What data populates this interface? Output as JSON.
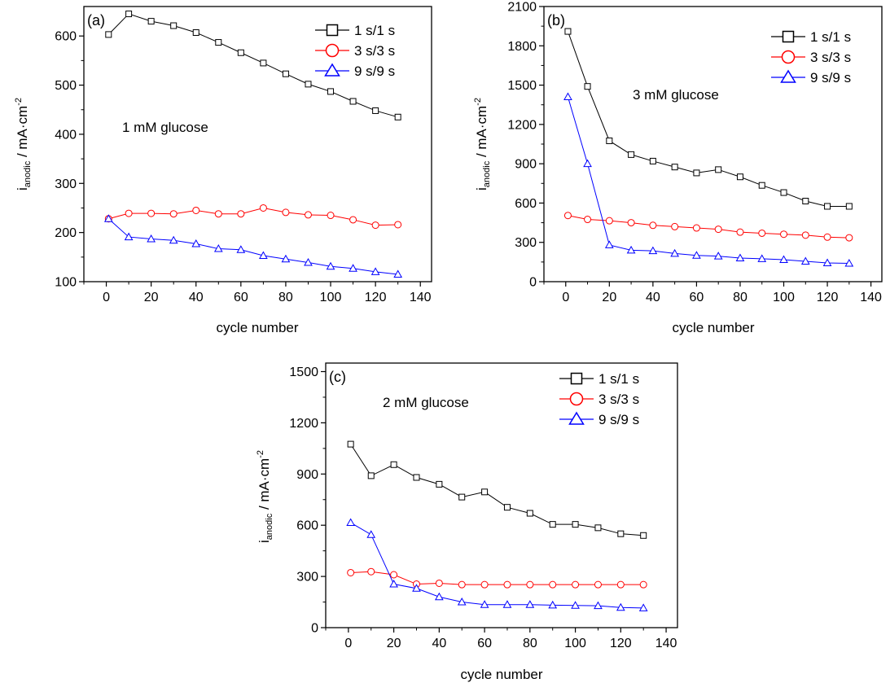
{
  "chart_data": [
    {
      "type": "line",
      "panel_label": "(a)",
      "annotation": "1 mM glucose",
      "xlabel": "cycle number",
      "ylabel_main": "i",
      "ylabel_sub": "anodic",
      "ylabel_rest": " / mA·cm",
      "ylabel_sup": "-2",
      "xlim": [
        -10,
        145
      ],
      "ylim": [
        100,
        660
      ],
      "xticks": [
        0,
        20,
        40,
        60,
        80,
        100,
        120,
        140
      ],
      "yticks": [
        100,
        200,
        300,
        400,
        500,
        600
      ],
      "series": [
        {
          "name": "1 s/1 s",
          "color": "#000000",
          "marker": "square",
          "x": [
            1,
            10,
            20,
            30,
            40,
            50,
            60,
            70,
            80,
            90,
            100,
            110,
            120,
            130
          ],
          "y": [
            603,
            645,
            630,
            621,
            607,
            587,
            566,
            545,
            523,
            502,
            487,
            467,
            448,
            435
          ]
        },
        {
          "name": "3 s/3 s",
          "color": "#ff0000",
          "marker": "circle",
          "x": [
            1,
            10,
            20,
            30,
            40,
            50,
            60,
            70,
            80,
            90,
            100,
            110,
            120,
            130
          ],
          "y": [
            228,
            239,
            239,
            238,
            245,
            238,
            238,
            250,
            241,
            236,
            235,
            226,
            215,
            216
          ]
        },
        {
          "name": "9 s/9 s",
          "color": "#0000ff",
          "marker": "triangle",
          "x": [
            1,
            10,
            20,
            30,
            40,
            50,
            60,
            70,
            80,
            90,
            100,
            110,
            120,
            130
          ],
          "y": [
            228,
            191,
            187,
            184,
            177,
            167,
            165,
            153,
            146,
            139,
            131,
            127,
            120,
            115
          ]
        }
      ]
    },
    {
      "type": "line",
      "panel_label": "(b)",
      "annotation": "3 mM glucose",
      "xlabel": "cycle number",
      "ylabel_main": "i",
      "ylabel_sub": "anodic",
      "ylabel_rest": " / mA·cm",
      "ylabel_sup": "-2",
      "xlim": [
        -10,
        145
      ],
      "ylim": [
        0,
        2100
      ],
      "xticks": [
        0,
        20,
        40,
        60,
        80,
        100,
        120,
        140
      ],
      "yticks": [
        0,
        300,
        600,
        900,
        1200,
        1500,
        1800,
        2100
      ],
      "series": [
        {
          "name": "1 s/1 s",
          "color": "#000000",
          "marker": "square",
          "x": [
            1,
            10,
            20,
            30,
            40,
            50,
            60,
            70,
            80,
            90,
            100,
            110,
            120,
            130
          ],
          "y": [
            1910,
            1490,
            1075,
            970,
            920,
            875,
            830,
            855,
            800,
            735,
            680,
            615,
            575,
            575
          ]
        },
        {
          "name": "3 s/3 s",
          "color": "#ff0000",
          "marker": "circle",
          "x": [
            1,
            10,
            20,
            30,
            40,
            50,
            60,
            70,
            80,
            90,
            100,
            110,
            120,
            130
          ],
          "y": [
            505,
            475,
            465,
            450,
            430,
            420,
            410,
            400,
            378,
            370,
            362,
            355,
            340,
            335
          ]
        },
        {
          "name": "9 s/9 s",
          "color": "#0000ff",
          "marker": "triangle",
          "x": [
            1,
            10,
            20,
            30,
            40,
            50,
            60,
            70,
            80,
            90,
            100,
            110,
            120,
            130
          ],
          "y": [
            1410,
            900,
            280,
            240,
            235,
            215,
            200,
            195,
            180,
            175,
            168,
            155,
            143,
            140
          ]
        }
      ]
    },
    {
      "type": "line",
      "panel_label": "(c)",
      "annotation": "2 mM glucose",
      "xlabel": "cycle number",
      "ylabel_main": "i",
      "ylabel_sub": "anodic",
      "ylabel_rest": " / mA·cm",
      "ylabel_sup": "-2",
      "xlim": [
        -10,
        145
      ],
      "ylim": [
        0,
        1550
      ],
      "xticks": [
        0,
        20,
        40,
        60,
        80,
        100,
        120,
        140
      ],
      "yticks": [
        0,
        300,
        600,
        900,
        1200,
        1500
      ],
      "series": [
        {
          "name": "1 s/1 s",
          "color": "#000000",
          "marker": "square",
          "x": [
            1,
            10,
            20,
            30,
            40,
            50,
            60,
            70,
            80,
            90,
            100,
            110,
            120,
            130
          ],
          "y": [
            1075,
            890,
            955,
            880,
            840,
            765,
            795,
            705,
            670,
            605,
            605,
            585,
            550,
            540
          ]
        },
        {
          "name": "3 s/3 s",
          "color": "#ff0000",
          "marker": "circle",
          "x": [
            1,
            10,
            20,
            30,
            40,
            50,
            60,
            70,
            80,
            90,
            100,
            110,
            120,
            130
          ],
          "y": [
            322,
            328,
            310,
            255,
            260,
            252,
            252,
            252,
            252,
            252,
            252,
            252,
            252,
            252
          ]
        },
        {
          "name": "9 s/9 s",
          "color": "#0000ff",
          "marker": "triangle",
          "x": [
            1,
            10,
            20,
            30,
            40,
            50,
            60,
            70,
            80,
            90,
            100,
            110,
            120,
            130
          ],
          "y": [
            615,
            545,
            255,
            230,
            180,
            150,
            135,
            135,
            135,
            132,
            130,
            128,
            118,
            115
          ]
        }
      ]
    }
  ]
}
